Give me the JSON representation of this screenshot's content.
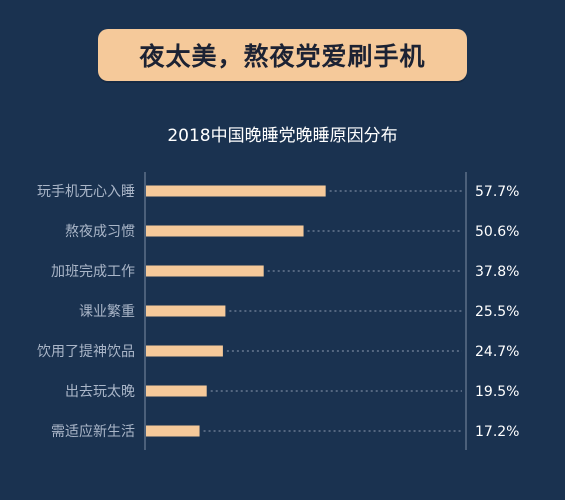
{
  "banner": {
    "text": "夜太美，熬夜党爱刷手机"
  },
  "colors": {
    "background": "#1a3250",
    "bar": "#f5c99a",
    "label": "#aab6c8",
    "value": "#ffffff",
    "axis": "#7f8da3"
  },
  "chart_data": {
    "type": "bar",
    "orientation": "horizontal",
    "title": "2018中国晚睡党晚睡原因分布",
    "xlabel": "",
    "ylabel": "",
    "xlim": [
      0,
      100
    ],
    "grid": false,
    "categories": [
      "玩手机无心入睡",
      "熬夜成习惯",
      "加班完成工作",
      "课业繁重",
      "饮用了提神饮品",
      "出去玩太晚",
      "需适应新生活"
    ],
    "values": [
      57.7,
      50.6,
      37.8,
      25.5,
      24.7,
      19.5,
      17.2
    ],
    "value_labels": [
      "57.7%",
      "50.6%",
      "37.8%",
      "25.5%",
      "24.7%",
      "19.5%",
      "17.2%"
    ]
  }
}
